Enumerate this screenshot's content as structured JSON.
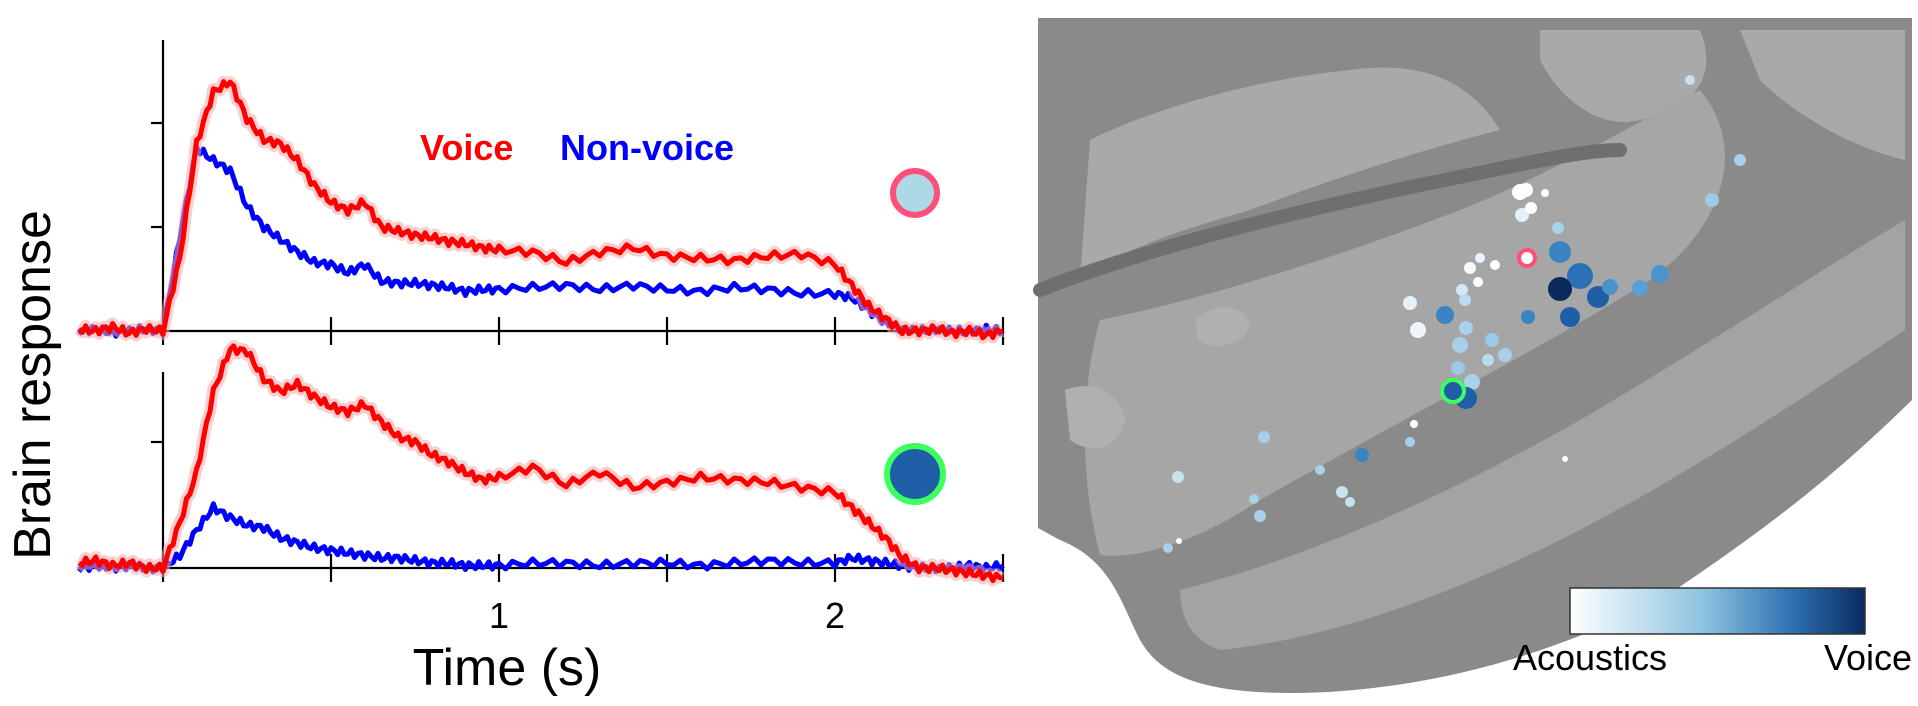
{
  "chart_data": [
    {
      "type": "line",
      "panel": "top",
      "ylabel": "Brain response",
      "xlim": [
        -0.5,
        2.5
      ],
      "x_ticks": [
        0,
        0.5,
        1,
        1.5,
        2,
        2.5
      ],
      "legend": {
        "placement": "top-right",
        "entries": [
          "Voice",
          "Non-voice"
        ]
      },
      "marker_color": "#add8e6",
      "marker_ring_color": "#ff4f7b",
      "series": [
        {
          "name": "Voice",
          "color": "#ff0000",
          "x": [
            -0.25,
            -0.2,
            -0.15,
            -0.1,
            -0.05,
            0,
            0.05,
            0.1,
            0.15,
            0.2,
            0.25,
            0.3,
            0.35,
            0.4,
            0.45,
            0.5,
            0.55,
            0.6,
            0.65,
            0.7,
            0.75,
            0.8,
            0.85,
            0.9,
            0.95,
            1.0,
            1.1,
            1.2,
            1.3,
            1.4,
            1.5,
            1.6,
            1.7,
            1.8,
            1.9,
            2.0,
            2.05,
            2.1,
            2.15,
            2.2,
            2.25,
            2.3,
            2.35,
            2.4,
            2.45,
            2.5
          ],
          "y": [
            0.01,
            0.0,
            0.02,
            -0.01,
            0.01,
            0.0,
            0.35,
            0.9,
            1.15,
            1.2,
            1.02,
            0.92,
            0.9,
            0.82,
            0.7,
            0.62,
            0.58,
            0.62,
            0.5,
            0.48,
            0.46,
            0.45,
            0.43,
            0.42,
            0.4,
            0.39,
            0.38,
            0.33,
            0.38,
            0.4,
            0.36,
            0.35,
            0.34,
            0.36,
            0.37,
            0.32,
            0.22,
            0.12,
            0.06,
            0.0,
            0.0,
            0.01,
            -0.01,
            0.0,
            -0.02,
            0.0
          ]
        },
        {
          "name": "Non-voice",
          "color": "#0000ff",
          "x": [
            -0.25,
            -0.2,
            -0.15,
            -0.1,
            -0.05,
            0,
            0.05,
            0.1,
            0.15,
            0.2,
            0.25,
            0.3,
            0.35,
            0.4,
            0.45,
            0.5,
            0.55,
            0.6,
            0.65,
            0.7,
            0.75,
            0.8,
            0.85,
            0.9,
            0.95,
            1.0,
            1.1,
            1.2,
            1.3,
            1.4,
            1.5,
            1.6,
            1.7,
            1.8,
            1.9,
            2.0,
            2.05,
            2.1,
            2.15,
            2.2,
            2.25,
            2.3,
            2.35,
            2.4,
            2.45,
            2.5
          ],
          "y": [
            0.0,
            0.01,
            -0.01,
            0.0,
            0.01,
            0.0,
            0.45,
            0.88,
            0.82,
            0.77,
            0.6,
            0.5,
            0.44,
            0.38,
            0.33,
            0.32,
            0.28,
            0.32,
            0.24,
            0.23,
            0.23,
            0.22,
            0.21,
            0.19,
            0.2,
            0.2,
            0.21,
            0.22,
            0.2,
            0.22,
            0.2,
            0.19,
            0.21,
            0.2,
            0.18,
            0.18,
            0.16,
            0.1,
            0.04,
            0.01,
            0.0,
            0.01,
            0.0,
            0.0,
            0.01,
            0.0
          ]
        }
      ]
    },
    {
      "type": "line",
      "panel": "bottom",
      "xlabel": "Time (s)",
      "xlim": [
        -0.5,
        2.5
      ],
      "x_ticks": [
        0,
        0.5,
        1,
        1.5,
        2,
        2.5
      ],
      "x_tick_labels": [
        {
          "value": 1,
          "label": "1"
        },
        {
          "value": 2,
          "label": "2"
        }
      ],
      "marker_color": "#1f5fa8",
      "marker_ring_color": "#3dff60",
      "series": [
        {
          "name": "Voice",
          "color": "#ff0000",
          "x": [
            -0.25,
            -0.2,
            -0.15,
            -0.1,
            -0.05,
            0,
            0.05,
            0.1,
            0.15,
            0.2,
            0.25,
            0.3,
            0.35,
            0.4,
            0.45,
            0.5,
            0.55,
            0.6,
            0.65,
            0.7,
            0.75,
            0.8,
            0.85,
            0.9,
            0.95,
            1.0,
            1.1,
            1.2,
            1.3,
            1.4,
            1.5,
            1.6,
            1.7,
            1.8,
            1.9,
            2.0,
            2.05,
            2.1,
            2.15,
            2.2,
            2.25,
            2.3,
            2.35,
            2.4,
            2.45,
            2.5
          ],
          "y": [
            0.02,
            0.03,
            0.01,
            0.02,
            0.0,
            0.0,
            0.18,
            0.38,
            0.7,
            0.87,
            0.86,
            0.75,
            0.7,
            0.73,
            0.68,
            0.64,
            0.62,
            0.65,
            0.58,
            0.52,
            0.5,
            0.45,
            0.42,
            0.38,
            0.35,
            0.36,
            0.4,
            0.33,
            0.38,
            0.32,
            0.34,
            0.36,
            0.35,
            0.34,
            0.32,
            0.3,
            0.24,
            0.18,
            0.12,
            0.04,
            0.0,
            0.0,
            -0.01,
            -0.02,
            -0.03,
            -0.04
          ]
        },
        {
          "name": "Non-voice",
          "color": "#0000ff",
          "x": [
            -0.25,
            -0.2,
            -0.15,
            -0.1,
            -0.05,
            0,
            0.05,
            0.1,
            0.15,
            0.2,
            0.25,
            0.3,
            0.35,
            0.4,
            0.45,
            0.5,
            0.55,
            0.6,
            0.65,
            0.7,
            0.75,
            0.8,
            0.85,
            0.9,
            0.95,
            1.0,
            1.1,
            1.2,
            1.3,
            1.4,
            1.5,
            1.6,
            1.7,
            1.8,
            1.9,
            2.0,
            2.05,
            2.1,
            2.15,
            2.2,
            2.25,
            2.3,
            2.35,
            2.4,
            2.45,
            2.5
          ],
          "y": [
            0.0,
            0.01,
            0.0,
            0.01,
            0.0,
            0.0,
            0.05,
            0.15,
            0.24,
            0.2,
            0.17,
            0.16,
            0.12,
            0.1,
            0.08,
            0.07,
            0.06,
            0.05,
            0.04,
            0.04,
            0.03,
            0.02,
            0.02,
            0.01,
            0.01,
            0.01,
            0.02,
            0.02,
            0.01,
            0.02,
            0.02,
            0.01,
            0.02,
            0.03,
            0.02,
            0.02,
            0.04,
            0.03,
            0.02,
            0.01,
            0.0,
            0.0,
            0.0,
            0.01,
            0.0,
            0.01
          ]
        }
      ]
    },
    {
      "type": "scatter",
      "panel": "cortical-map",
      "colorbar": {
        "low_label": "Acoustics",
        "high_label": "Voice",
        "low_color": "#ffffff",
        "high_color": "#0a2a5e"
      },
      "note_highlight_colors": [
        "#ff4f7b",
        "#3dff60"
      ]
    }
  ]
}
